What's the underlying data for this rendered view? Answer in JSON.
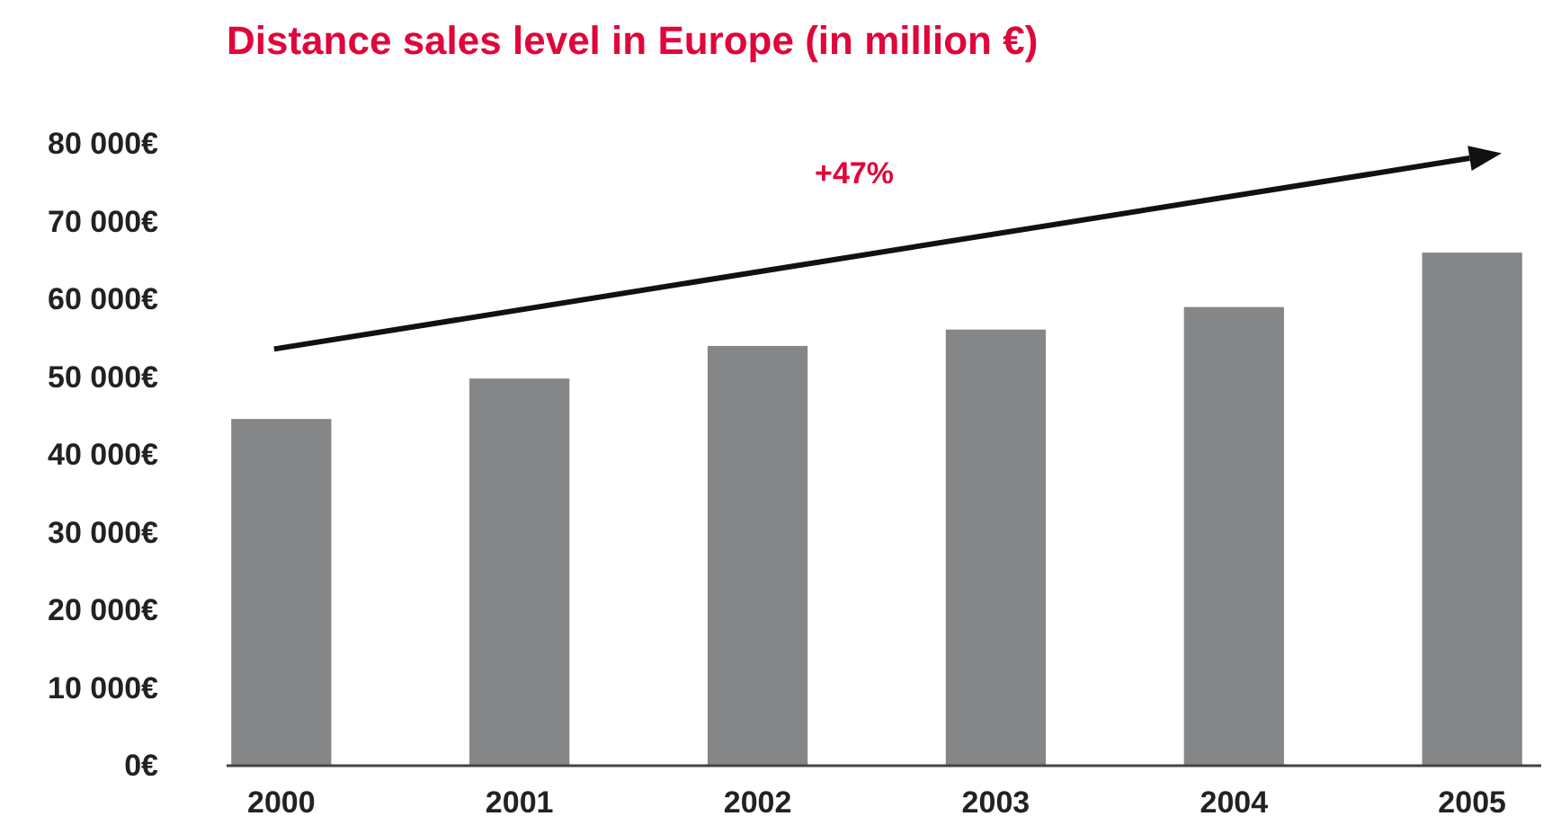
{
  "chart_data": {
    "type": "bar",
    "title": "Distance sales level in Europe (in million €)",
    "categories": [
      "2000",
      "2001",
      "2002",
      "2003",
      "2004",
      "2005"
    ],
    "values": [
      44600,
      49800,
      54000,
      56100,
      59000,
      66000
    ],
    "color": "#858688",
    "ylim": [
      0,
      80000
    ],
    "yticks": [
      {
        "value": 0,
        "label": "0€"
      },
      {
        "value": 10000,
        "label": "10 000€"
      },
      {
        "value": 20000,
        "label": "20 000€"
      },
      {
        "value": 30000,
        "label": "30 000€"
      },
      {
        "value": 40000,
        "label": "40 000€"
      },
      {
        "value": 50000,
        "label": "50 000€"
      },
      {
        "value": 60000,
        "label": "60 000€"
      },
      {
        "value": 70000,
        "label": "70 000€"
      },
      {
        "value": 80000,
        "label": "80 000€"
      }
    ],
    "grid": false,
    "annotations": [
      "+47%"
    ]
  }
}
